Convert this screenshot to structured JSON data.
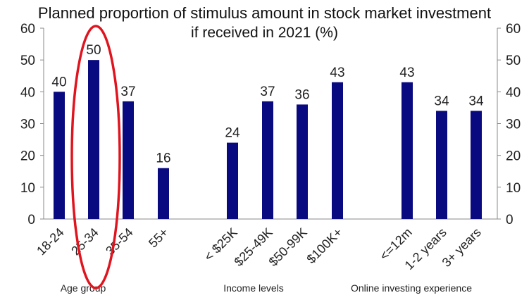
{
  "chart_data": {
    "type": "bar",
    "title": "Planned proportion of stimulus amount in stock market investment",
    "subtitle": "if received in 2021 (%)",
    "xlabel": "",
    "ylabel": "",
    "ylim": [
      0,
      60
    ],
    "yticks": [
      "0",
      "10",
      "20",
      "30",
      "40",
      "50",
      "60"
    ],
    "bar_color": "#0a0a80",
    "highlight_color": "#e0141e",
    "highlighted_category": "25-34",
    "grid": false,
    "groups": [
      {
        "label": "Age group",
        "categories": [
          "18-24",
          "25-34",
          "35-54",
          "55+"
        ],
        "values": [
          40,
          50,
          37,
          16
        ]
      },
      {
        "label": "Income levels",
        "categories": [
          "< $25K",
          "$25-49K",
          "$50-99K",
          "$100K+"
        ],
        "values": [
          24,
          37,
          36,
          43
        ]
      },
      {
        "label": "Online investing experience",
        "categories": [
          "<=12m",
          "1-2 years",
          "3+ years"
        ],
        "values": [
          43,
          34,
          34
        ]
      }
    ]
  }
}
